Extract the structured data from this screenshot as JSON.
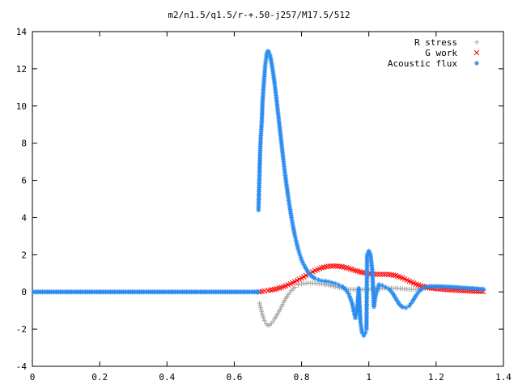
{
  "chart_data": {
    "type": "scatter",
    "title": "m2/n1.5/q1.5/r-+.50-j257/M17.5/512",
    "xlabel": "",
    "ylabel": "",
    "xlim": [
      0,
      1.4
    ],
    "ylim": [
      -4,
      14
    ],
    "grid": false,
    "legend_position": "top-right",
    "x_ticks": [
      "0",
      "0.2",
      "0.4",
      "0.6",
      "0.8",
      "1",
      "1.2",
      "1.4"
    ],
    "y_ticks": [
      "-4",
      "-2",
      "0",
      "2",
      "4",
      "6",
      "8",
      "10",
      "12",
      "14"
    ],
    "series": [
      {
        "name": "R stress",
        "marker": "+",
        "color": "#a0a0a0",
        "points": [
          [
            0.675,
            -0.6
          ],
          [
            0.68,
            -0.95
          ],
          [
            0.685,
            -1.3
          ],
          [
            0.69,
            -1.55
          ],
          [
            0.695,
            -1.72
          ],
          [
            0.7,
            -1.8
          ],
          [
            0.705,
            -1.78
          ],
          [
            0.71,
            -1.7
          ],
          [
            0.72,
            -1.45
          ],
          [
            0.73,
            -1.15
          ],
          [
            0.74,
            -0.8
          ],
          [
            0.75,
            -0.45
          ],
          [
            0.76,
            -0.15
          ],
          [
            0.77,
            0.08
          ],
          [
            0.78,
            0.25
          ],
          [
            0.79,
            0.37
          ],
          [
            0.8,
            0.44
          ],
          [
            0.82,
            0.48
          ],
          [
            0.84,
            0.47
          ],
          [
            0.86,
            0.43
          ],
          [
            0.88,
            0.36
          ],
          [
            0.9,
            0.28
          ],
          [
            0.92,
            0.2
          ],
          [
            0.94,
            0.14
          ],
          [
            0.96,
            0.12
          ],
          [
            0.98,
            0.12
          ],
          [
            1.0,
            0.14
          ],
          [
            1.02,
            0.17
          ],
          [
            1.04,
            0.2
          ],
          [
            1.06,
            0.21
          ],
          [
            1.08,
            0.2
          ],
          [
            1.1,
            0.17
          ],
          [
            1.12,
            0.14
          ],
          [
            1.14,
            0.14
          ],
          [
            1.16,
            0.17
          ],
          [
            1.18,
            0.2
          ],
          [
            1.2,
            0.22
          ],
          [
            1.22,
            0.22
          ],
          [
            1.24,
            0.2
          ],
          [
            1.26,
            0.18
          ],
          [
            1.28,
            0.15
          ],
          [
            1.3,
            0.12
          ],
          [
            1.32,
            0.1
          ],
          [
            1.34,
            0.08
          ]
        ]
      },
      {
        "name": "G work",
        "marker": "x",
        "color": "#ff0000",
        "points": [
          [
            0.675,
            0.0
          ],
          [
            0.69,
            0.05
          ],
          [
            0.7,
            0.08
          ],
          [
            0.72,
            0.14
          ],
          [
            0.74,
            0.24
          ],
          [
            0.76,
            0.38
          ],
          [
            0.78,
            0.55
          ],
          [
            0.8,
            0.74
          ],
          [
            0.82,
            0.95
          ],
          [
            0.84,
            1.15
          ],
          [
            0.86,
            1.3
          ],
          [
            0.88,
            1.38
          ],
          [
            0.9,
            1.4
          ],
          [
            0.92,
            1.36
          ],
          [
            0.94,
            1.27
          ],
          [
            0.96,
            1.15
          ],
          [
            0.98,
            1.05
          ],
          [
            1.0,
            0.98
          ],
          [
            1.02,
            0.95
          ],
          [
            1.04,
            0.95
          ],
          [
            1.06,
            0.94
          ],
          [
            1.08,
            0.88
          ],
          [
            1.1,
            0.75
          ],
          [
            1.12,
            0.58
          ],
          [
            1.14,
            0.42
          ],
          [
            1.16,
            0.3
          ],
          [
            1.18,
            0.22
          ],
          [
            1.2,
            0.17
          ],
          [
            1.22,
            0.14
          ],
          [
            1.24,
            0.11
          ],
          [
            1.26,
            0.09
          ],
          [
            1.28,
            0.07
          ],
          [
            1.3,
            0.05
          ],
          [
            1.32,
            0.03
          ],
          [
            1.34,
            0.02
          ]
        ]
      },
      {
        "name": "Acoustic flux",
        "marker": "*",
        "color": "#2b8cf0",
        "points": [
          [
            0.672,
            4.4
          ],
          [
            0.677,
            7.6
          ],
          [
            0.679,
            8.4
          ],
          [
            0.682,
            9.2
          ],
          [
            0.684,
            10.2
          ],
          [
            0.687,
            11.0
          ],
          [
            0.69,
            11.7
          ],
          [
            0.692,
            12.2
          ],
          [
            0.695,
            12.6
          ],
          [
            0.697,
            12.85
          ],
          [
            0.7,
            12.95
          ],
          [
            0.703,
            12.9
          ],
          [
            0.706,
            12.75
          ],
          [
            0.71,
            12.4
          ],
          [
            0.715,
            11.85
          ],
          [
            0.72,
            11.2
          ],
          [
            0.725,
            10.45
          ],
          [
            0.73,
            9.65
          ],
          [
            0.735,
            8.85
          ],
          [
            0.74,
            8.05
          ],
          [
            0.745,
            7.25
          ],
          [
            0.75,
            6.5
          ],
          [
            0.755,
            5.8
          ],
          [
            0.76,
            5.15
          ],
          [
            0.765,
            4.55
          ],
          [
            0.77,
            4.0
          ],
          [
            0.775,
            3.5
          ],
          [
            0.78,
            3.05
          ],
          [
            0.785,
            2.65
          ],
          [
            0.79,
            2.3
          ],
          [
            0.795,
            2.0
          ],
          [
            0.8,
            1.72
          ],
          [
            0.81,
            1.35
          ],
          [
            0.82,
            1.05
          ],
          [
            0.83,
            0.85
          ],
          [
            0.84,
            0.72
          ],
          [
            0.85,
            0.65
          ],
          [
            0.86,
            0.6
          ],
          [
            0.87,
            0.58
          ],
          [
            0.88,
            0.55
          ],
          [
            0.89,
            0.5
          ],
          [
            0.9,
            0.45
          ],
          [
            0.91,
            0.38
          ],
          [
            0.92,
            0.3
          ],
          [
            0.93,
            0.15
          ],
          [
            0.94,
            -0.1
          ],
          [
            0.95,
            -0.6
          ],
          [
            0.96,
            -1.4
          ],
          [
            0.965,
            -1.0
          ],
          [
            0.97,
            0.2
          ],
          [
            0.975,
            -1.6
          ],
          [
            0.98,
            -2.2
          ],
          [
            0.985,
            -2.35
          ],
          [
            0.99,
            -2.2
          ],
          [
            0.993,
            -2.0
          ],
          [
            0.995,
            2.0
          ],
          [
            1.0,
            2.2
          ],
          [
            1.005,
            2.0
          ],
          [
            1.01,
            1.2
          ],
          [
            1.015,
            -0.8
          ],
          [
            1.02,
            -0.2
          ],
          [
            1.03,
            0.4
          ],
          [
            1.04,
            0.35
          ],
          [
            1.05,
            0.25
          ],
          [
            1.06,
            0.15
          ],
          [
            1.07,
            -0.05
          ],
          [
            1.08,
            -0.35
          ],
          [
            1.09,
            -0.65
          ],
          [
            1.1,
            -0.82
          ],
          [
            1.11,
            -0.85
          ],
          [
            1.12,
            -0.75
          ],
          [
            1.13,
            -0.5
          ],
          [
            1.14,
            -0.2
          ],
          [
            1.15,
            0.05
          ],
          [
            1.16,
            0.2
          ],
          [
            1.17,
            0.27
          ],
          [
            1.18,
            0.3
          ],
          [
            1.2,
            0.3
          ],
          [
            1.22,
            0.29
          ],
          [
            1.24,
            0.27
          ],
          [
            1.26,
            0.25
          ],
          [
            1.28,
            0.22
          ],
          [
            1.3,
            0.2
          ],
          [
            1.32,
            0.18
          ],
          [
            1.34,
            0.15
          ]
        ]
      }
    ]
  },
  "blue_baseline": {
    "x_start": 0.0,
    "x_end": 0.672,
    "y": 0.0,
    "count": 180
  }
}
